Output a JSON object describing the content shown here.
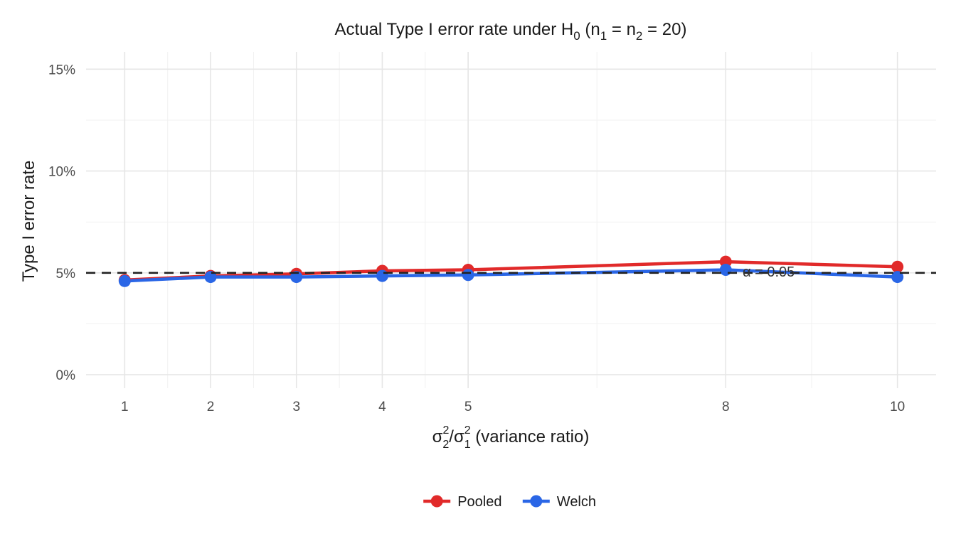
{
  "chart_data": {
    "type": "line",
    "title": {
      "prefix": "Actual Type I error rate under H",
      "sub_0": "0",
      "mid_1": " (n",
      "sub_1": "1",
      "mid_2": " = n",
      "sub_2": "2",
      "suffix": " = 20)"
    },
    "xlabel": {
      "sym_a": "σ",
      "sup_a": "2",
      "sub_a": "2",
      "slash": "/",
      "sym_b": "σ",
      "sup_b": "2",
      "sub_b": "1",
      "suffix": " (variance ratio)"
    },
    "ylabel": "Type I error rate",
    "x": [
      1,
      2,
      3,
      4,
      5,
      8,
      10
    ],
    "x_tick_labels": [
      "1",
      "2",
      "3",
      "4",
      "5",
      "8",
      "10"
    ],
    "xlim": [
      0.55,
      10.45
    ],
    "ylim": [
      -0.0066,
      0.1585
    ],
    "y_ticks": [
      0,
      0.05,
      0.1,
      0.15
    ],
    "y_tick_labels": [
      "0%",
      "5%",
      "10%",
      "15%"
    ],
    "series": [
      {
        "name": "Pooled",
        "color": "#e12a2a",
        "values": [
          0.0465,
          0.0485,
          0.0495,
          0.051,
          0.0515,
          0.0555,
          0.053
        ]
      },
      {
        "name": "Welch",
        "color": "#2a66e6",
        "values": [
          0.046,
          0.048,
          0.048,
          0.0485,
          0.049,
          0.0515,
          0.048
        ]
      }
    ],
    "reference_line": {
      "y": 0.05,
      "label": "α = 0.05",
      "label_x": 8.5,
      "style": "dashed",
      "color": "#222222"
    },
    "grid": true,
    "legend_position": "bottom"
  }
}
